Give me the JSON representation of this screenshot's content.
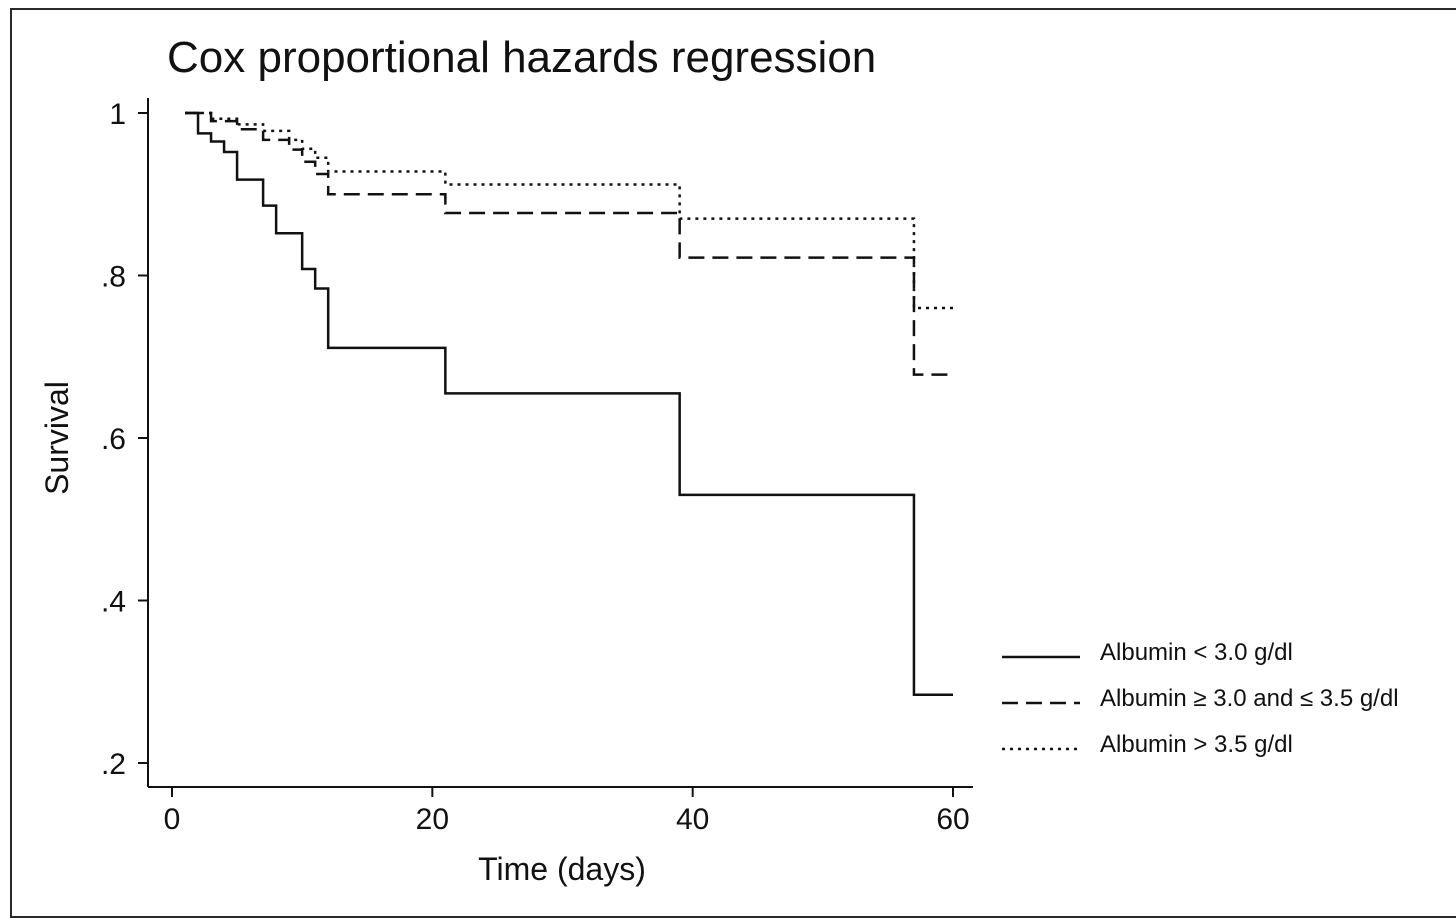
{
  "chart_data": {
    "type": "line",
    "title": "Cox proportional hazards regression",
    "xlabel": "Time (days)",
    "ylabel": "Survival",
    "xlim": [
      0,
      60
    ],
    "ylim": [
      0.2,
      1.0
    ],
    "xticks": [
      0,
      20,
      40,
      60
    ],
    "xtick_labels": [
      "0",
      "20",
      "40",
      "60"
    ],
    "yticks": [
      0.2,
      0.4,
      0.6,
      0.8,
      1.0
    ],
    "ytick_labels": [
      ".2",
      ".4",
      ".6",
      ".8",
      "1"
    ],
    "grid": false,
    "legend_position": "right",
    "step": true,
    "series": [
      {
        "name": "Albumin < 3.0 g/dl",
        "line_style": "solid",
        "color": "#111111",
        "x": [
          1,
          2,
          3,
          4,
          5,
          7,
          8,
          10,
          11,
          12,
          21,
          39,
          57,
          60
        ],
        "y": [
          1.0,
          0.975,
          0.965,
          0.952,
          0.918,
          0.886,
          0.852,
          0.808,
          0.784,
          0.711,
          0.655,
          0.53,
          0.284,
          0.284
        ]
      },
      {
        "name": "Albumin ≥ 3.0 and ≤ 3.5 g/dl",
        "line_style": "dashed",
        "color": "#111111",
        "x": [
          1,
          3,
          5,
          7,
          9,
          10,
          11,
          12,
          21,
          39,
          57,
          60
        ],
        "y": [
          1.0,
          0.99,
          0.98,
          0.967,
          0.955,
          0.94,
          0.925,
          0.9,
          0.877,
          0.822,
          0.678,
          0.678
        ]
      },
      {
        "name": "Albumin > 3.5 g/dl",
        "line_style": "dotted",
        "color": "#111111",
        "x": [
          1,
          3,
          5,
          7,
          9,
          10,
          11,
          12,
          21,
          39,
          57,
          60
        ],
        "y": [
          1.0,
          0.993,
          0.986,
          0.978,
          0.967,
          0.956,
          0.945,
          0.928,
          0.912,
          0.87,
          0.76,
          0.76
        ]
      }
    ]
  }
}
